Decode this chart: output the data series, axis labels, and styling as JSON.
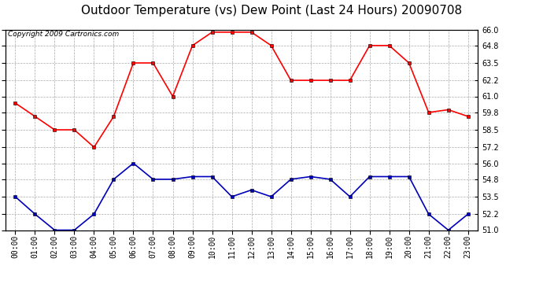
{
  "title": "Outdoor Temperature (vs) Dew Point (Last 24 Hours) 20090708",
  "copyright": "Copyright 2009 Cartronics.com",
  "hours": [
    "00:00",
    "01:00",
    "02:00",
    "03:00",
    "04:00",
    "05:00",
    "06:00",
    "07:00",
    "08:00",
    "09:00",
    "10:00",
    "11:00",
    "12:00",
    "13:00",
    "14:00",
    "15:00",
    "16:00",
    "17:00",
    "18:00",
    "19:00",
    "20:00",
    "21:00",
    "22:00",
    "23:00"
  ],
  "temp": [
    60.5,
    59.5,
    58.5,
    58.5,
    57.2,
    59.5,
    63.5,
    63.5,
    61.0,
    64.8,
    65.8,
    65.8,
    65.8,
    64.8,
    62.2,
    62.2,
    62.2,
    62.2,
    64.8,
    64.8,
    63.5,
    59.8,
    60.0,
    59.5
  ],
  "dew": [
    53.5,
    52.2,
    51.0,
    51.0,
    52.2,
    54.8,
    56.0,
    54.8,
    54.8,
    55.0,
    55.0,
    53.5,
    54.0,
    53.5,
    54.8,
    55.0,
    54.8,
    53.5,
    55.0,
    55.0,
    55.0,
    52.2,
    51.0,
    52.2
  ],
  "temp_color": "#ff0000",
  "dew_color": "#0000bb",
  "bg_color": "#ffffff",
  "grid_color": "#aaaaaa",
  "ylim_min": 51.0,
  "ylim_max": 66.0,
  "yticks": [
    51.0,
    52.2,
    53.5,
    54.8,
    56.0,
    57.2,
    58.5,
    59.8,
    61.0,
    62.2,
    63.5,
    64.8,
    66.0
  ],
  "title_fontsize": 11,
  "copyright_fontsize": 6.5,
  "tick_fontsize": 7,
  "marker_size": 2.5,
  "line_width": 1.2
}
